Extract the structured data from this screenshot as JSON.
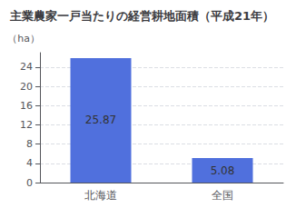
{
  "chart_data": {
    "type": "bar",
    "title": "主業農家一戸当たりの経営耕地面積（平成21年）",
    "categories": [
      "北海道",
      "全国"
    ],
    "values": [
      25.87,
      5.08
    ],
    "ylabel": "（ha）",
    "ylim": [
      0,
      27
    ],
    "yticks": [
      0,
      4,
      8,
      12,
      16,
      20,
      24
    ],
    "grid": true,
    "data_labels": true
  }
}
